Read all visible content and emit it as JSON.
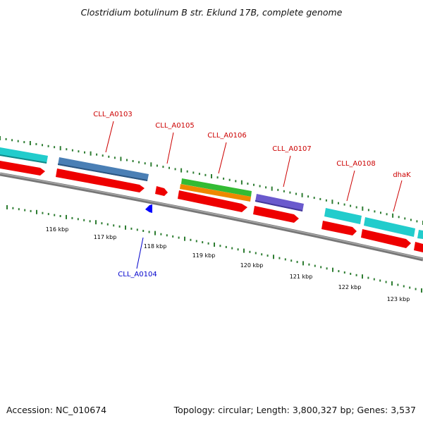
{
  "title": "Clostridium botulinum B str. Eklund 17B, complete genome",
  "footer": {
    "accession": "Accession: NC_010674",
    "topology": "Topology: circular; Length: 3,800,327 bp; Genes: 3,537"
  },
  "scale_labels": [
    "116 kbp",
    "117 kbp",
    "118 kbp",
    "119 kbp",
    "120 kbp",
    "121 kbp",
    "122 kbp",
    "123 kbp"
  ],
  "gene_labels": [
    {
      "text": "CLL_A0103",
      "color": "#cc0000"
    },
    {
      "text": "CLL_A0104",
      "color": "#0000cc"
    },
    {
      "text": "CLL_A0105",
      "color": "#cc0000"
    },
    {
      "text": "CLL_A0106",
      "color": "#cc0000"
    },
    {
      "text": "CLL_A0107",
      "color": "#cc0000"
    },
    {
      "text": "CLL_A0108",
      "color": "#cc0000"
    },
    {
      "text": "dhaK",
      "color": "#cc0000"
    }
  ],
  "colors": {
    "cds": "#ee0000",
    "cds_minus": "#0000ff",
    "cyan_feature": "#22cccc",
    "steelblue_feature": "#4a7fb5",
    "green_feature": "#33bb33",
    "orange_feature": "#ee8800",
    "purple_feature": "#6a5acd",
    "backbone": "#777777",
    "tick": "#2e7d32"
  }
}
